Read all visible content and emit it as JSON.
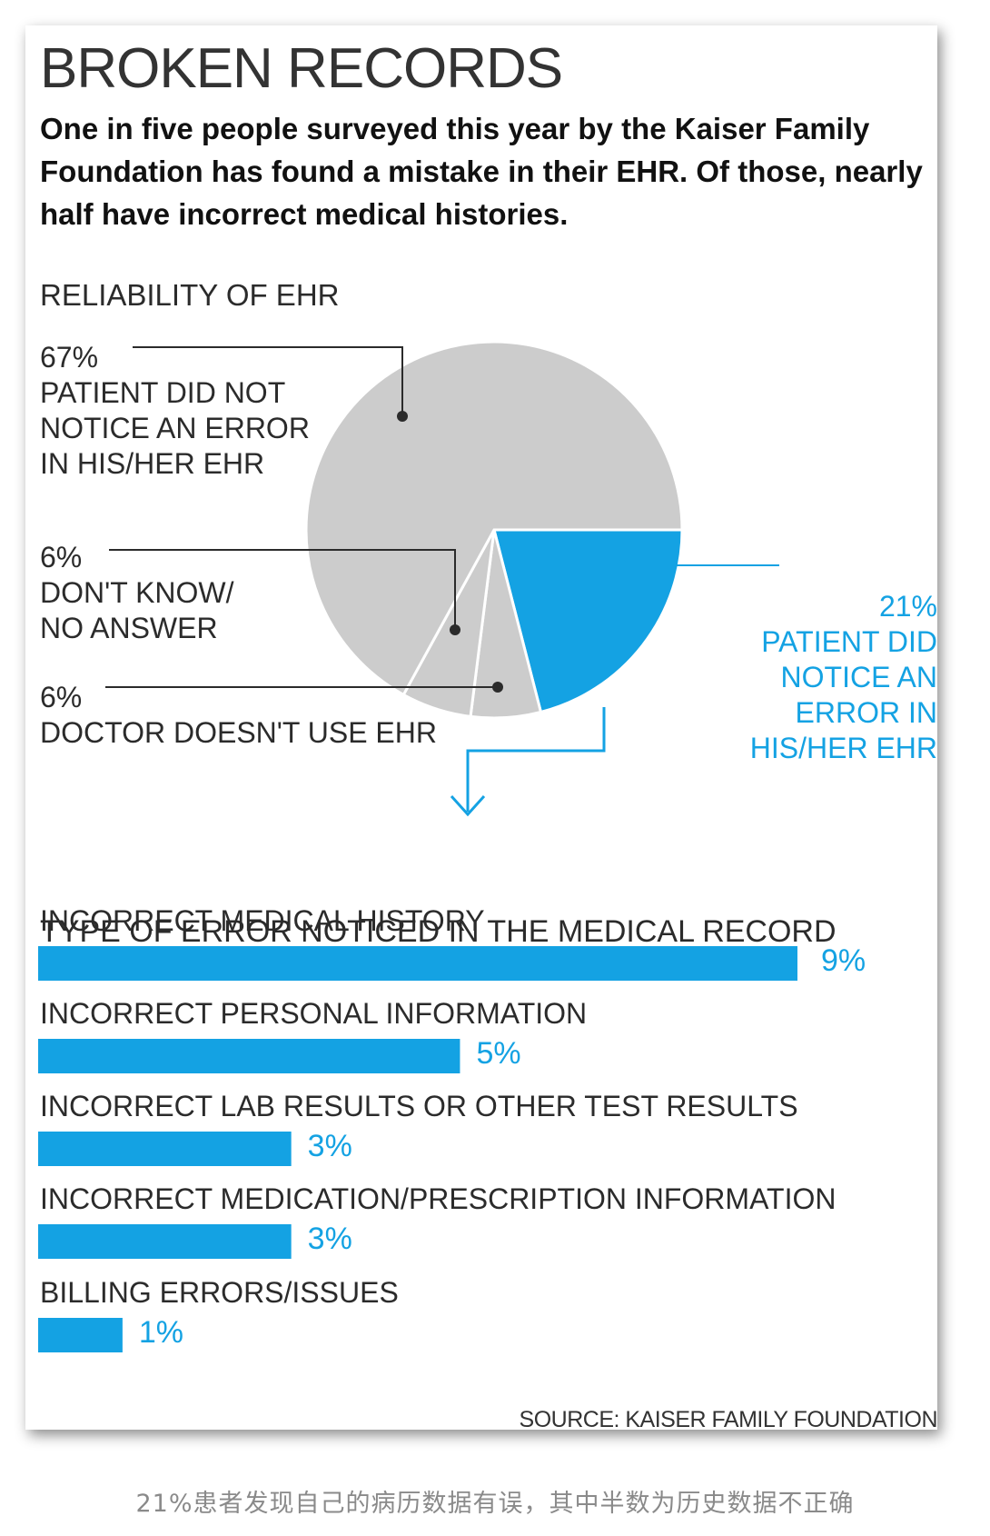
{
  "title": "BROKEN RECORDS",
  "subtitle": "One in five people surveyed this year by the Kaiser Family Foundation has found a mistake in their EHR. Of those, nearly half have incorrect medical histories.",
  "caption": "21%患者发现自己的病历数据有误，其中半数为历史数据不正确",
  "source": "SOURCE: KAISER FAMILY FOUNDATION",
  "colors": {
    "accent": "#14a2e3",
    "pie_gray": "#cccccc",
    "text": "#2b2b2b"
  },
  "chart_data": [
    {
      "type": "pie",
      "title": "RELIABILITY OF EHR",
      "slices": [
        {
          "label": "PATIENT DID NOT NOTICE AN ERROR IN HIS/HER EHR",
          "value_label": "67%",
          "value": 67,
          "color": "#cccccc"
        },
        {
          "label": "PATIENT DID NOTICE AN ERROR IN HIS/HER EHR",
          "value_label": "21%",
          "value": 21,
          "color": "#14a2e3"
        },
        {
          "label": "DOCTOR DOESN'T USE EHR",
          "value_label": "6%",
          "value": 6,
          "color": "#cccccc"
        },
        {
          "label": "DON'T KNOW/ NO ANSWER",
          "value_label": "6%",
          "value": 6,
          "color": "#cccccc"
        }
      ]
    },
    {
      "type": "bar",
      "orientation": "horizontal",
      "title": "TYPE OF ERROR NOTICED IN THE MEDICAL RECORD",
      "categories": [
        "INCORRECT MEDICAL HISTORY",
        "INCORRECT PERSONAL INFORMATION",
        "INCORRECT LAB RESULTS OR OTHER TEST RESULTS",
        "INCORRECT MEDICATION/PRESCRIPTION INFORMATION",
        "BILLING ERRORS/ISSUES"
      ],
      "values": [
        9,
        5,
        3,
        3,
        1
      ],
      "value_labels": [
        "9%",
        "5%",
        "3%",
        "3%",
        "1%"
      ],
      "color": "#14a2e3"
    }
  ]
}
